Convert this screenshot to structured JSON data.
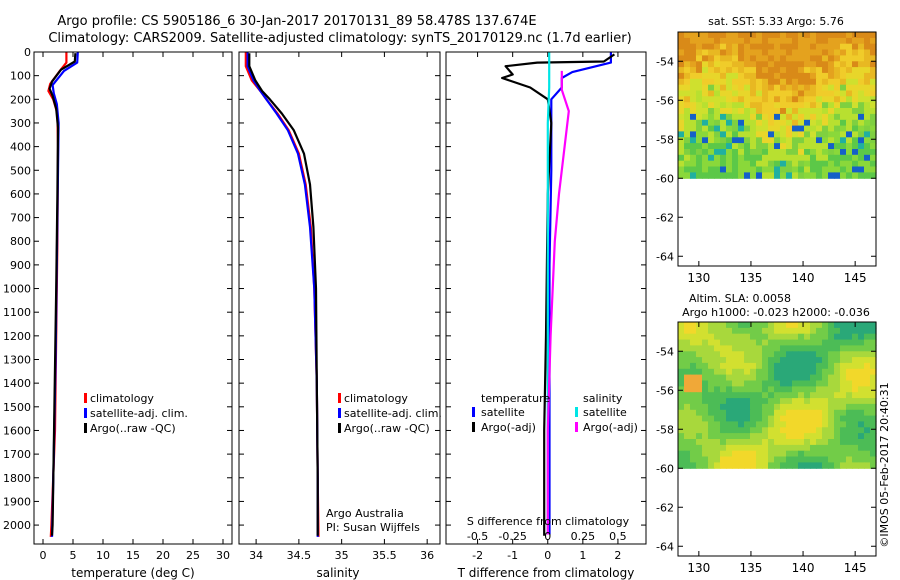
{
  "title_line1": "Argo profile: CS 5905186_6 30-Jan-2017 20170131_89 58.478S 137.674E",
  "title_line2": "Climatology: CARS2009. Satellite-adjusted climatology: synTS_20170129.nc (1.7d earlier)",
  "credit": "Argo Australia",
  "pi": "PI: Susan Wijffels",
  "stamp": "©IMOS 05-Feb-2017 20:40:31",
  "colors": {
    "climatology": "#ff0000",
    "satellite": "#0000ff",
    "argo": "#000000",
    "sal_satellite": "#00e5e5",
    "sal_argo": "#ff00ff"
  },
  "chart_data": [
    {
      "type": "line",
      "id": "temperature",
      "xlabel": "temperature (deg C)",
      "xlim": [
        -1.5,
        31.5
      ],
      "xticks": [
        0,
        5,
        10,
        15,
        20,
        25,
        30
      ],
      "xtick_labels": [
        "0",
        "5",
        "10",
        "15",
        "20",
        "25",
        "30"
      ],
      "ylim": [
        2080,
        0
      ],
      "yticks": [
        0,
        100,
        200,
        300,
        400,
        500,
        600,
        700,
        800,
        900,
        1000,
        1100,
        1200,
        1300,
        1400,
        1500,
        1600,
        1700,
        1800,
        1900,
        2000
      ],
      "ytick_labels": [
        "0",
        "100",
        "200",
        "300",
        "400",
        "500",
        "600",
        "700",
        "800",
        "900",
        "1000",
        "1100",
        "1200",
        "1300",
        "1400",
        "1500",
        "1600",
        "1700",
        "1800",
        "1900",
        "2000"
      ],
      "legend": [
        "climatology",
        "satellite-adj. clim.",
        "Argo(..raw -QC)"
      ],
      "series": [
        {
          "name": "climatology",
          "color": "red",
          "points": [
            [
              3.9,
              0
            ],
            [
              3.9,
              45
            ],
            [
              2.8,
              80
            ],
            [
              1.2,
              135
            ],
            [
              0.9,
              165
            ],
            [
              1.7,
              200
            ],
            [
              2.4,
              260
            ],
            [
              2.5,
              400
            ],
            [
              2.4,
              800
            ],
            [
              2.2,
              1200
            ],
            [
              2.0,
              1600
            ],
            [
              1.4,
              2000
            ],
            [
              1.3,
              2050
            ]
          ]
        },
        {
          "name": "satellite",
          "color": "blue",
          "points": [
            [
              5.8,
              0
            ],
            [
              5.7,
              45
            ],
            [
              3.5,
              80
            ],
            [
              1.6,
              140
            ],
            [
              1.8,
              175
            ],
            [
              2.3,
              220
            ],
            [
              2.6,
              300
            ],
            [
              2.5,
              500
            ],
            [
              2.3,
              900
            ],
            [
              2.1,
              1300
            ],
            [
              1.8,
              1700
            ],
            [
              1.5,
              2050
            ]
          ]
        },
        {
          "name": "argo",
          "color": "black",
          "points": [
            [
              5.4,
              5
            ],
            [
              5.3,
              40
            ],
            [
              3.0,
              75
            ],
            [
              1.5,
              125
            ],
            [
              1.1,
              155
            ],
            [
              1.6,
              185
            ],
            [
              2.2,
              240
            ],
            [
              2.5,
              320
            ],
            [
              2.4,
              600
            ],
            [
              2.2,
              1000
            ],
            [
              1.9,
              1500
            ],
            [
              1.6,
              2000
            ],
            [
              1.5,
              2045
            ]
          ]
        }
      ]
    },
    {
      "type": "line",
      "id": "salinity",
      "xlabel": "salinity",
      "xlim": [
        33.8,
        36.15
      ],
      "xticks": [
        34,
        34.5,
        35,
        35.5,
        36
      ],
      "xtick_labels": [
        "34",
        "34.5",
        "35",
        "35.5",
        "36"
      ],
      "ylim": [
        2080,
        0
      ],
      "legend": [
        "climatology",
        "satellite-adj. clim.",
        "Argo(..raw -QC)"
      ],
      "series": [
        {
          "name": "climatology",
          "color": "red",
          "points": [
            [
              33.88,
              0
            ],
            [
              33.88,
              60
            ],
            [
              33.95,
              120
            ],
            [
              34.05,
              165
            ],
            [
              34.12,
              200
            ],
            [
              34.25,
              260
            ],
            [
              34.38,
              330
            ],
            [
              34.5,
              430
            ],
            [
              34.58,
              560
            ],
            [
              34.64,
              740
            ],
            [
              34.68,
              1000
            ],
            [
              34.71,
              1400
            ],
            [
              34.72,
              1800
            ],
            [
              34.73,
              2050
            ]
          ]
        },
        {
          "name": "satellite",
          "color": "blue",
          "points": [
            [
              33.9,
              0
            ],
            [
              33.9,
              60
            ],
            [
              33.97,
              120
            ],
            [
              34.05,
              165
            ],
            [
              34.12,
              200
            ],
            [
              34.24,
              260
            ],
            [
              34.37,
              330
            ],
            [
              34.49,
              430
            ],
            [
              34.57,
              560
            ],
            [
              34.63,
              740
            ],
            [
              34.68,
              1000
            ],
            [
              34.71,
              1400
            ],
            [
              34.72,
              1800
            ],
            [
              34.72,
              2050
            ]
          ]
        },
        {
          "name": "argo",
          "color": "black",
          "points": [
            [
              33.92,
              5
            ],
            [
              33.92,
              60
            ],
            [
              33.99,
              120
            ],
            [
              34.07,
              165
            ],
            [
              34.16,
              200
            ],
            [
              34.3,
              260
            ],
            [
              34.44,
              330
            ],
            [
              34.56,
              430
            ],
            [
              34.63,
              560
            ],
            [
              34.67,
              740
            ],
            [
              34.7,
              1000
            ],
            [
              34.71,
              1400
            ],
            [
              34.72,
              1800
            ],
            [
              34.72,
              2045
            ]
          ]
        }
      ]
    },
    {
      "type": "line",
      "id": "differences",
      "xlabel": "T difference from climatology",
      "xlabel_top": "S difference from climatology",
      "xlim": [
        -2.9,
        2.8
      ],
      "xticks": [
        -2,
        -1,
        0,
        1,
        2
      ],
      "xtick_labels": [
        "-2",
        "-1",
        "0",
        "1",
        "2"
      ],
      "top_ticks_s": [
        -0.5,
        -0.25,
        0,
        0.25,
        0.5
      ],
      "top_tick_labels": [
        "-0.5",
        "-0.25",
        "0",
        "0.25",
        "0.5"
      ],
      "ylim": [
        2080,
        0
      ],
      "legend_temperature_title": "temperature",
      "legend_salinity_title": "salinity",
      "legend_temperature": [
        "satellite",
        "Argo(-adj)"
      ],
      "legend_salinity": [
        "satellite",
        "Argo(-adj)"
      ],
      "series": [
        {
          "name": "T satellite",
          "color": "blue",
          "points": [
            [
              1.8,
              0
            ],
            [
              1.8,
              45
            ],
            [
              0.7,
              85
            ],
            [
              0.4,
              110
            ],
            [
              0.4,
              150
            ],
            [
              0.1,
              200
            ],
            [
              0.1,
              300
            ],
            [
              0.1,
              500
            ],
            [
              0.05,
              900
            ],
            [
              0.05,
              1400
            ],
            [
              0.05,
              2040
            ]
          ]
        },
        {
          "name": "T Argo(-adj)",
          "color": "black",
          "points": [
            [
              1.9,
              10
            ],
            [
              1.6,
              40
            ],
            [
              -0.3,
              45
            ],
            [
              -1.2,
              60
            ],
            [
              -1.0,
              95
            ],
            [
              -1.3,
              110
            ],
            [
              -0.5,
              150
            ],
            [
              0.0,
              200
            ],
            [
              0.1,
              300
            ],
            [
              0.0,
              600
            ],
            [
              -0.05,
              1200
            ],
            [
              -0.1,
              1600
            ],
            [
              -0.1,
              2045
            ]
          ]
        },
        {
          "name": "S satellite",
          "color": "cyan",
          "points": [
            [
              0.01,
              0
            ],
            [
              0.01,
              150
            ],
            [
              0.0,
              300
            ],
            [
              0.0,
              600
            ],
            [
              0.0,
              1000
            ],
            [
              0.0,
              1500
            ],
            [
              0.0,
              2040
            ]
          ]
        },
        {
          "name": "S Argo(-adj)",
          "color": "magenta",
          "points": [
            [
              0.1,
              80
            ],
            [
              0.1,
              160
            ],
            [
              0.15,
              250
            ],
            [
              0.12,
              400
            ],
            [
              0.08,
              600
            ],
            [
              0.05,
              800
            ],
            [
              0.02,
              1200
            ],
            [
              0.0,
              1600
            ],
            [
              0.0,
              2040
            ]
          ]
        }
      ]
    },
    {
      "type": "heatmap",
      "id": "sst_map",
      "title": "sat. SST: 5.33 Argo: 5.76",
      "xlim": [
        128,
        147
      ],
      "ylim": [
        -64.5,
        -52.5
      ],
      "data_extent_y": [
        -60,
        -52.5
      ],
      "xticks": [
        130,
        135,
        140,
        145
      ],
      "xtick_labels": [
        "130",
        "135",
        "140",
        "145"
      ],
      "yticks": [
        -54,
        -56,
        -58,
        -60,
        -62,
        -64
      ],
      "ytick_labels": [
        "-54",
        "-56",
        "-58",
        "-60",
        "-62",
        "-64"
      ]
    },
    {
      "type": "heatmap",
      "id": "sla_map",
      "title": "Altim. SLA: 0.0058",
      "subtitle": "Argo h1000: -0.023 h2000: -0.036",
      "xlim": [
        128,
        147
      ],
      "ylim": [
        -64.5,
        -52.5
      ],
      "data_extent_y": [
        -60,
        -52.5
      ],
      "xticks": [
        130,
        135,
        140,
        145
      ],
      "xtick_labels": [
        "130",
        "135",
        "140",
        "145"
      ],
      "yticks": [
        -54,
        -56,
        -58,
        -60,
        -62,
        -64
      ],
      "ytick_labels": [
        "-54",
        "-56",
        "-58",
        "-60",
        "-62",
        "-64"
      ]
    }
  ]
}
